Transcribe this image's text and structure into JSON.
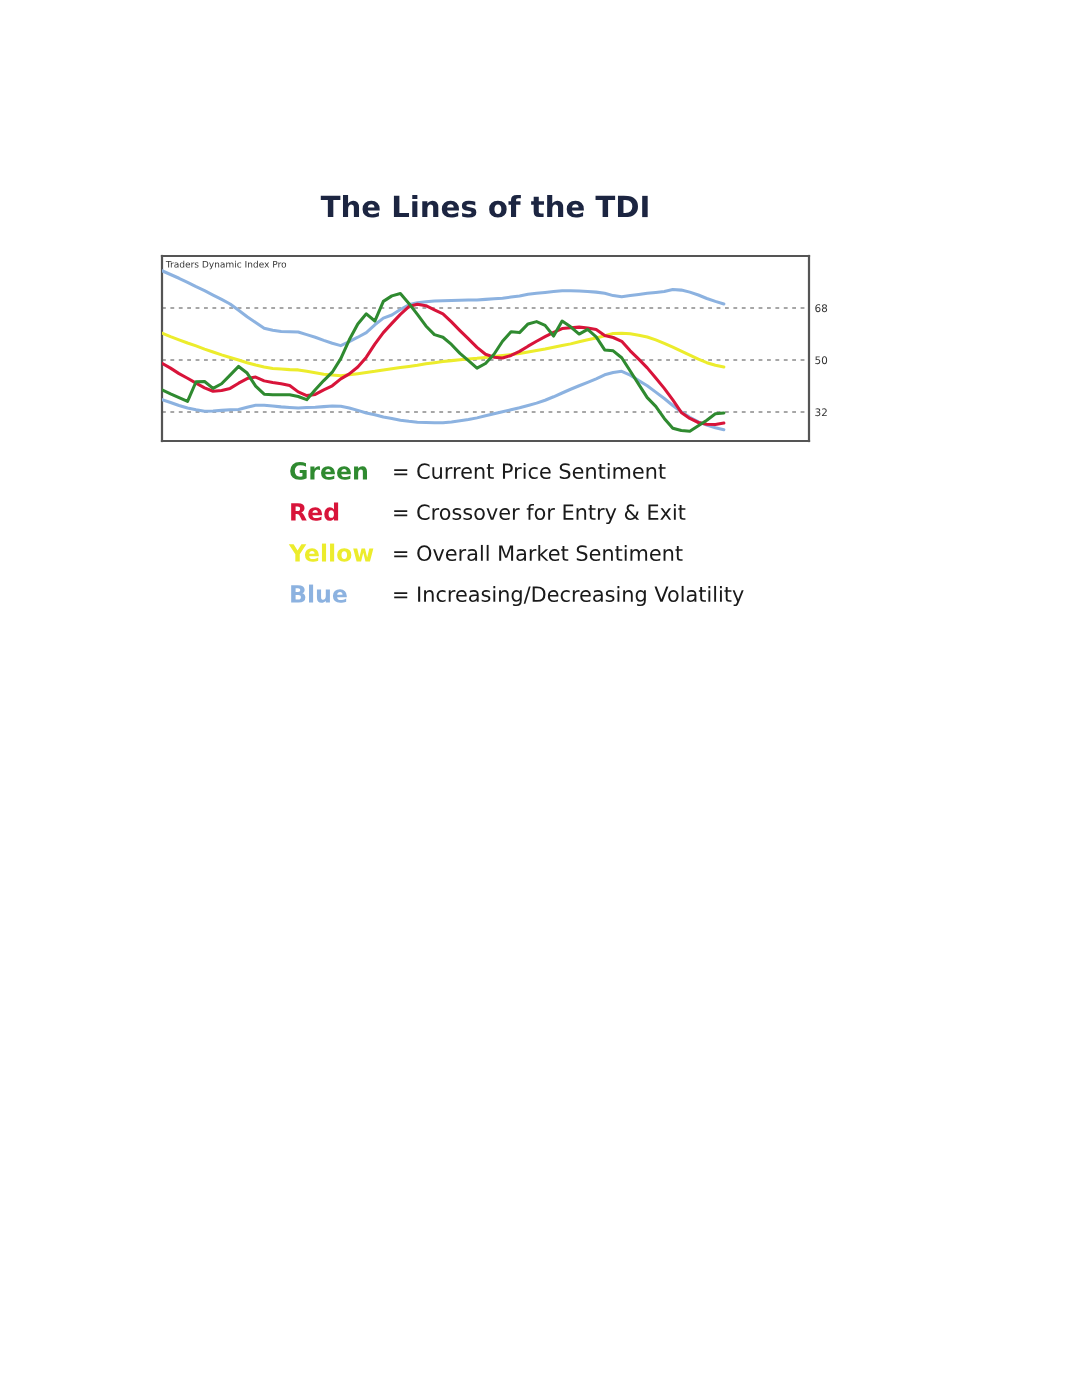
{
  "chart_data": {
    "type": "line",
    "title": "The Lines of the TDI",
    "subtitle": "Traders Dynamic Index Pro",
    "categories": [
      null,
      null,
      null,
      null,
      null,
      null,
      null,
      null,
      null,
      null,
      null,
      null,
      null,
      null,
      null,
      null,
      null,
      null,
      null,
      null,
      null,
      null,
      null,
      null,
      null,
      null,
      null,
      null,
      null,
      null,
      null,
      null,
      null,
      null,
      null,
      null,
      null,
      null,
      null,
      null,
      null,
      null,
      null,
      null,
      null,
      null,
      null,
      null,
      null,
      null,
      null,
      null,
      null,
      null,
      null,
      null,
      null,
      null,
      null,
      null,
      null,
      null,
      null,
      null,
      null,
      null,
      null,
      null,
      null,
      null,
      null,
      null,
      null,
      null,
      null,
      null,
      null
    ],
    "series": [
      {
        "name": "Green",
        "color": "#2f8a30",
        "values": [
          39.7,
          38.3,
          37.0,
          35.7,
          42.5,
          42.6,
          40.2,
          41.8,
          44.8,
          47.8,
          45.5,
          41.0,
          38.2,
          38.0,
          38.0,
          38.0,
          37.4,
          36.3,
          39.7,
          42.9,
          45.8,
          50.5,
          57.0,
          62.5,
          66.0,
          63.5,
          70.3,
          72.2,
          73.0,
          69.6,
          65.8,
          61.8,
          58.8,
          57.9,
          55.4,
          52.3,
          49.8,
          47.2,
          48.8,
          52.0,
          56.5,
          59.8,
          59.5,
          62.5,
          63.3,
          62.0,
          58.3,
          63.5,
          61.5,
          59.0,
          60.6,
          58.0,
          53.5,
          53.2,
          50.8,
          46.2,
          41.6,
          37.0,
          34.0,
          29.8,
          26.4,
          25.6,
          25.4,
          27.3,
          29.2,
          31.4,
          31.7,
          null,
          null,
          null,
          null,
          null,
          null,
          null,
          null,
          null,
          null
        ]
      },
      {
        "name": "Red",
        "color": "#d8143a",
        "values": [
          48.9,
          47.2,
          45.3,
          43.7,
          42.0,
          40.4,
          39.2,
          39.5,
          40.2,
          42.0,
          43.6,
          44.1,
          42.8,
          42.2,
          41.8,
          41.2,
          39.0,
          37.7,
          38.1,
          39.7,
          41.1,
          43.5,
          45.2,
          47.6,
          51.0,
          55.5,
          59.5,
          62.7,
          65.8,
          68.5,
          69.3,
          68.8,
          67.4,
          66.0,
          63.2,
          60.2,
          57.3,
          54.4,
          52.0,
          51.0,
          50.7,
          51.6,
          53.0,
          54.8,
          56.5,
          58.1,
          59.6,
          60.9,
          61.2,
          61.4,
          61.1,
          60.6,
          58.5,
          57.8,
          56.5,
          53.2,
          50.3,
          47.3,
          43.8,
          40.2,
          36.2,
          31.9,
          29.8,
          28.4,
          27.8,
          27.7,
          28.2,
          null,
          null,
          null,
          null,
          null,
          null,
          null,
          null,
          null,
          null
        ]
      },
      {
        "name": "Yellow",
        "color": "#ecec2c",
        "values": [
          59.3,
          58.1,
          57.0,
          55.9,
          54.9,
          53.8,
          52.8,
          51.8,
          50.9,
          50.0,
          49.1,
          48.3,
          47.6,
          47.1,
          46.9,
          46.7,
          46.6,
          46.1,
          45.6,
          45.1,
          44.8,
          44.6,
          44.9,
          45.3,
          45.7,
          46.1,
          46.6,
          47.0,
          47.4,
          47.8,
          48.2,
          48.7,
          49.1,
          49.5,
          49.8,
          50.1,
          50.4,
          50.6,
          50.9,
          51.2,
          51.6,
          51.9,
          52.3,
          52.8,
          53.3,
          53.8,
          54.4,
          55.0,
          55.6,
          56.3,
          57.0,
          57.6,
          58.4,
          59.2,
          59.3,
          59.1,
          58.6,
          58.0,
          57.0,
          55.8,
          54.5,
          53.1,
          51.7,
          50.3,
          49.1,
          48.2,
          47.6,
          null,
          null,
          null,
          null,
          null,
          null,
          null,
          null,
          null,
          null
        ]
      },
      {
        "name": "Blue",
        "color": "#8cb2e0",
        "values": [
          80.9,
          79.6,
          78.3,
          76.9,
          75.4,
          74.0,
          72.5,
          71.0,
          69.4,
          67.2,
          65.0,
          63.0,
          61.0,
          60.3,
          59.9,
          59.8,
          59.7,
          58.8,
          57.9,
          56.8,
          55.8,
          55.0,
          56.4,
          57.9,
          59.5,
          62.2,
          64.5,
          65.6,
          67.5,
          69.1,
          69.8,
          70.2,
          70.4,
          70.5,
          70.6,
          70.7,
          70.8,
          70.8,
          71.0,
          71.2,
          71.4,
          71.8,
          72.2,
          72.8,
          73.1,
          73.4,
          73.7,
          74.0,
          74.0,
          73.9,
          73.7,
          73.5,
          73.1,
          72.3,
          71.9,
          72.3,
          72.7,
          73.1,
          73.4,
          73.7,
          74.4,
          74.2,
          73.5,
          72.5,
          71.3,
          70.3,
          69.4,
          null,
          null,
          null,
          null,
          null,
          null,
          null,
          null,
          null,
          null
        ]
      },
      {
        "color": "#8cb2e0",
        "values": [
          36.3,
          35.3,
          34.3,
          33.4,
          32.8,
          32.3,
          32.4,
          32.6,
          32.8,
          32.9,
          33.7,
          34.4,
          34.4,
          34.1,
          33.8,
          33.6,
          33.4,
          33.6,
          33.7,
          33.9,
          34.1,
          34.0,
          33.4,
          32.6,
          31.7,
          31.1,
          30.3,
          29.8,
          29.2,
          28.8,
          28.5,
          28.4,
          28.3,
          28.3,
          28.6,
          29.0,
          29.4,
          30.0,
          30.7,
          31.4,
          32.1,
          32.8,
          33.5,
          34.3,
          35.1,
          36.1,
          37.3,
          38.6,
          39.9,
          41.1,
          42.3,
          43.5,
          44.9,
          45.7,
          46.1,
          44.8,
          42.9,
          41.1,
          38.9,
          36.7,
          34.3,
          32.1,
          30.2,
          28.6,
          27.5,
          26.6,
          25.9,
          null,
          null,
          null,
          null,
          null,
          null,
          null,
          null,
          null,
          null
        ]
      }
    ],
    "ylim": [
      22,
      86
    ],
    "yticks": [
      32,
      50,
      68
    ],
    "grid": "y",
    "tick_labels": "y",
    "legend": "bottom",
    "line_style": "solid",
    "marker": "none",
    "annotations": [
      "= Current Price Sentiment",
      "= Crossover for Entry & Exit",
      "= Overall Market Sentiment",
      "= Increasing/Decreasing Volatility"
    ]
  }
}
